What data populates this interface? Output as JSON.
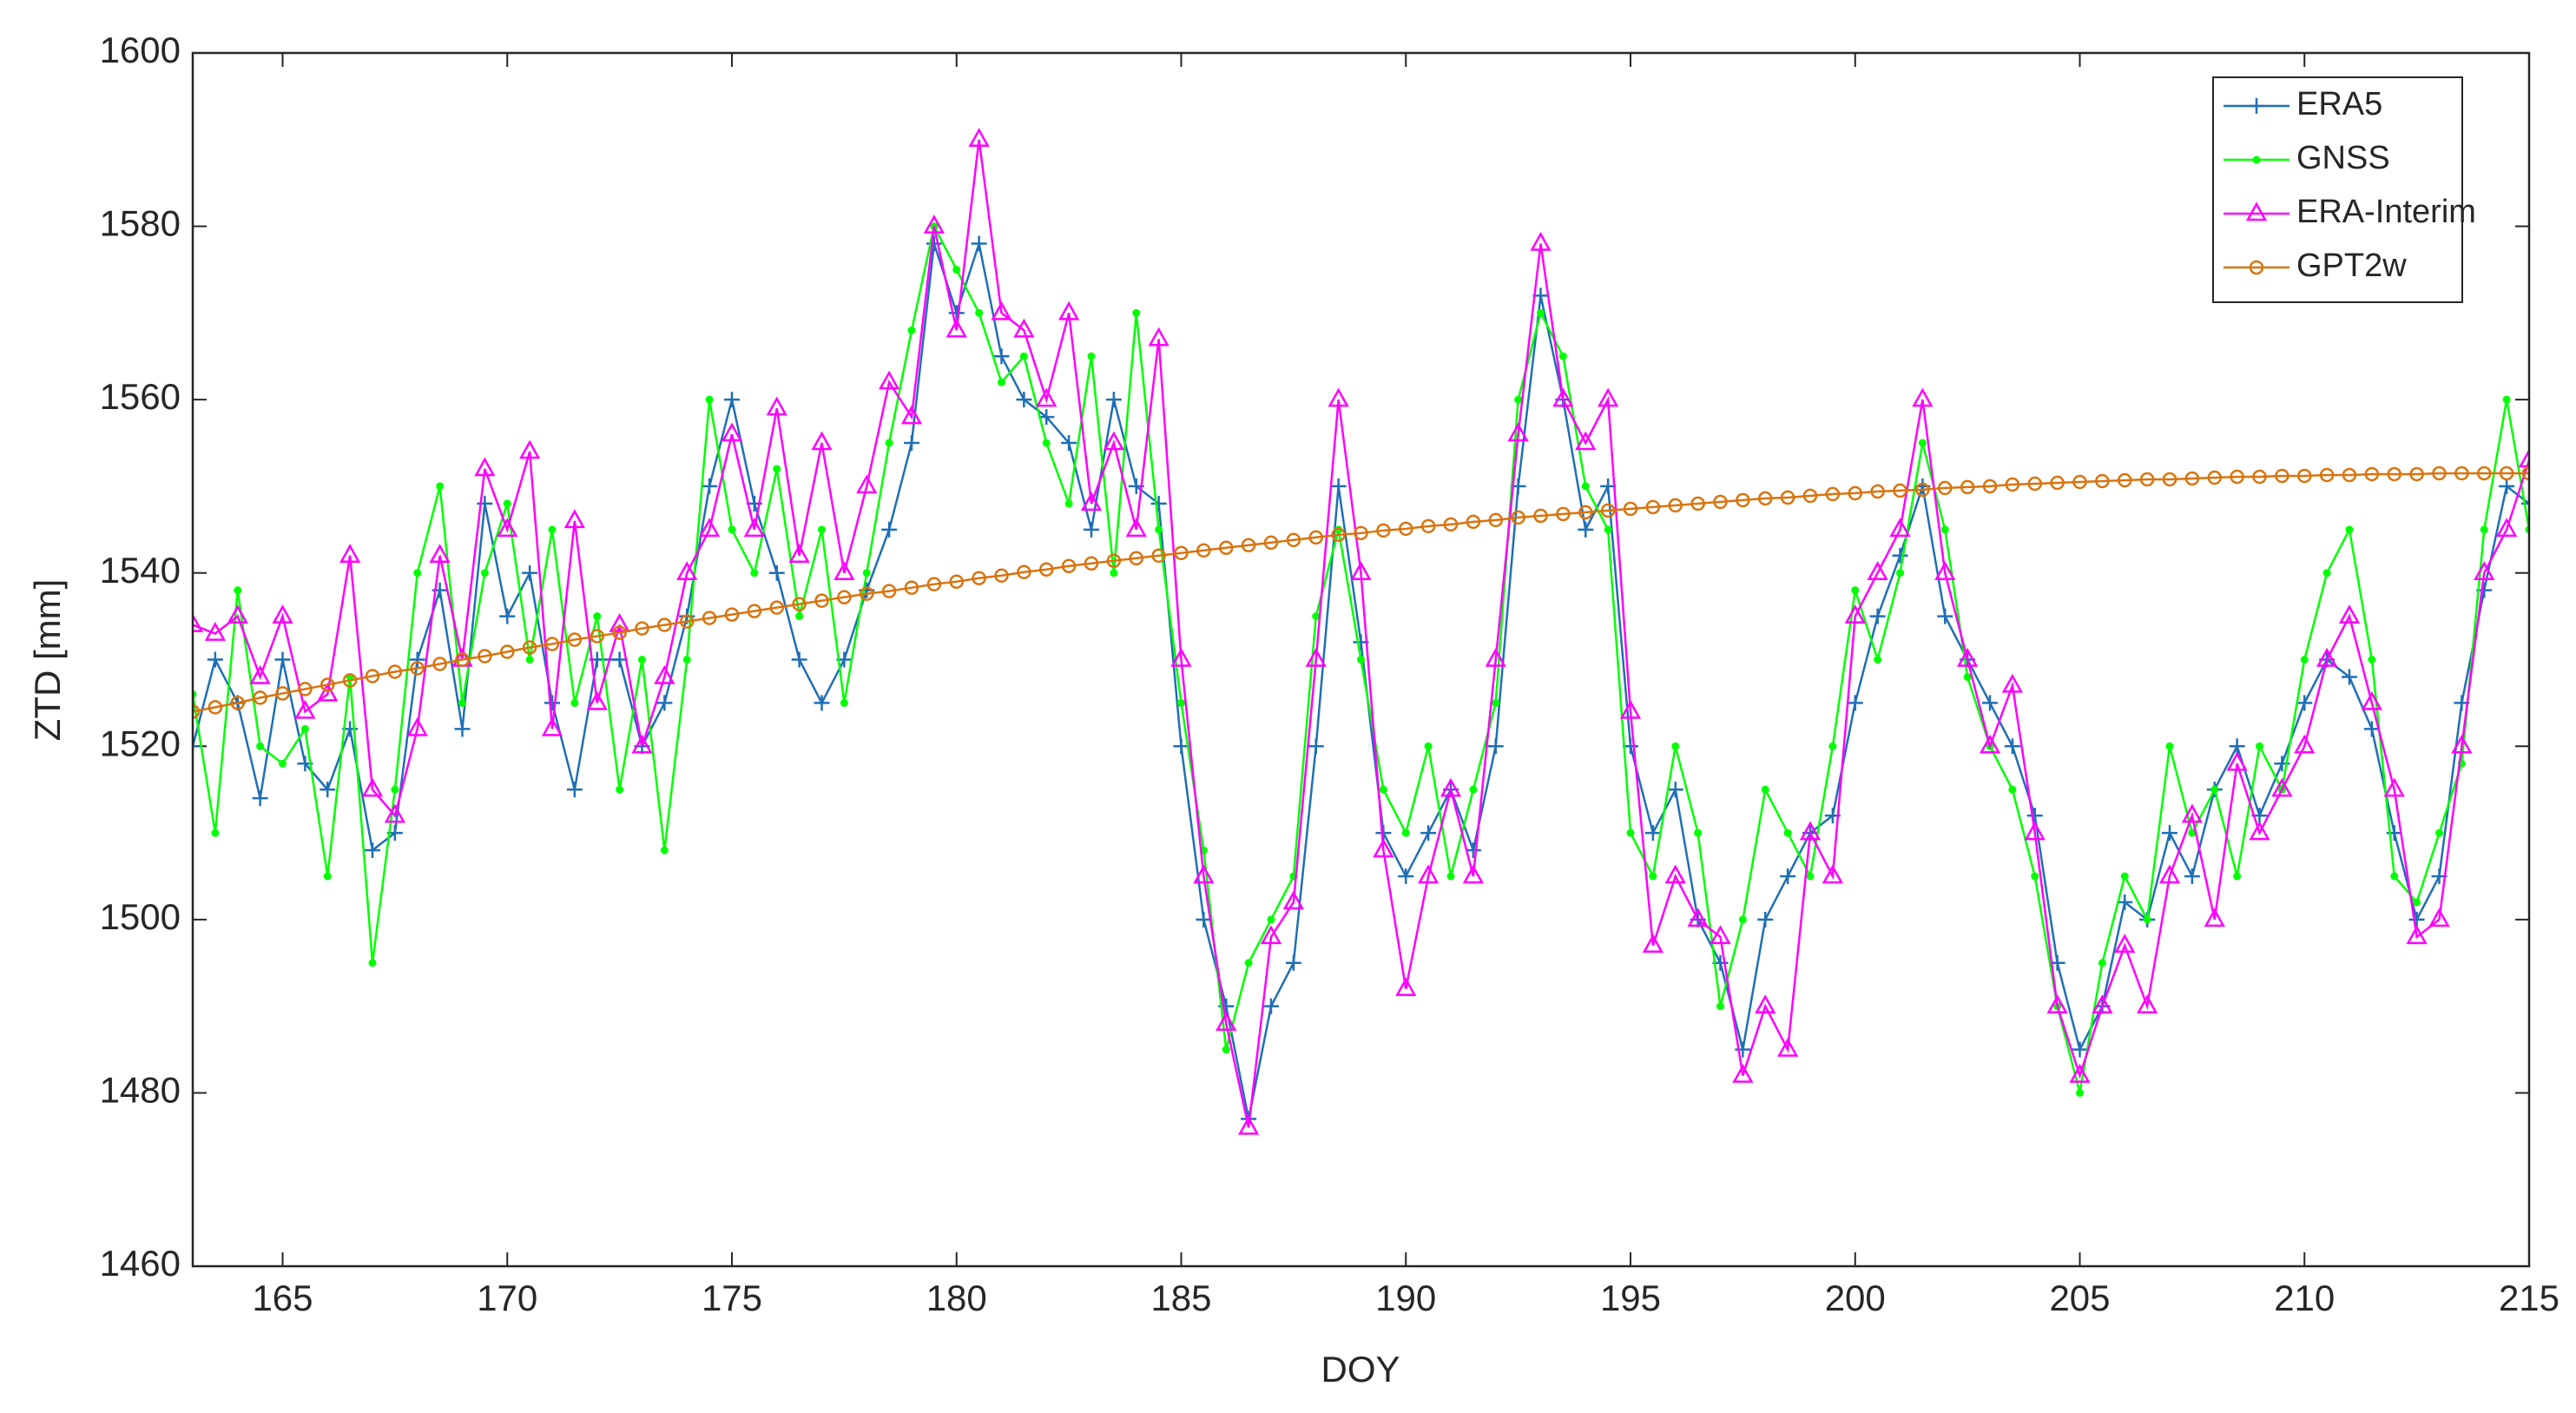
{
  "chart_data": {
    "type": "line",
    "xlabel": "DOY",
    "ylabel": "ZTD [mm]",
    "xlim": [
      163,
      215
    ],
    "xticks": [
      165,
      170,
      175,
      180,
      185,
      190,
      195,
      200,
      205,
      210,
      215
    ],
    "ylim": [
      1460,
      1600
    ],
    "yticks": [
      1460,
      1480,
      1500,
      1520,
      1540,
      1560,
      1580,
      1600
    ],
    "legend": "top-right",
    "x": [
      163,
      163.5,
      164,
      164.5,
      165,
      165.5,
      166,
      166.5,
      167,
      167.5,
      168,
      168.5,
      169,
      169.5,
      170,
      170.5,
      171,
      171.5,
      172,
      172.5,
      173,
      173.5,
      174,
      174.5,
      175,
      175.5,
      176,
      176.5,
      177,
      177.5,
      178,
      178.5,
      179,
      179.5,
      180,
      180.5,
      181,
      181.5,
      182,
      182.5,
      183,
      183.5,
      184,
      184.5,
      185,
      185.5,
      186,
      186.5,
      187,
      187.5,
      188,
      188.5,
      189,
      189.5,
      190,
      190.5,
      191,
      191.5,
      192,
      192.5,
      193,
      193.5,
      194,
      194.5,
      195,
      195.5,
      196,
      196.5,
      197,
      197.5,
      198,
      198.5,
      199,
      199.5,
      200,
      200.5,
      201,
      201.5,
      202,
      202.5,
      203,
      203.5,
      204,
      204.5,
      205,
      205.5,
      206,
      206.5,
      207,
      207.5,
      208,
      208.5,
      209,
      209.5,
      210,
      210.5,
      211,
      211.5,
      212,
      212.5,
      213,
      213.5,
      214,
      214.5,
      215
    ],
    "series": [
      {
        "name": "ERA5",
        "color": "#1f6fb5",
        "marker": "plus",
        "values": [
          1520,
          1530,
          1525,
          1514,
          1530,
          1518,
          1515,
          1522,
          1508,
          1510,
          1530,
          1538,
          1522,
          1548,
          1535,
          1540,
          1525,
          1515,
          1530,
          1530,
          1520,
          1525,
          1535,
          1550,
          1560,
          1548,
          1540,
          1530,
          1525,
          1530,
          1538,
          1545,
          1555,
          1578,
          1570,
          1578,
          1565,
          1560,
          1558,
          1555,
          1545,
          1560,
          1550,
          1548,
          1520,
          1500,
          1490,
          1477,
          1490,
          1495,
          1520,
          1550,
          1532,
          1510,
          1505,
          1510,
          1515,
          1508,
          1520,
          1550,
          1572,
          1560,
          1545,
          1550,
          1520,
          1510,
          1515,
          1500,
          1495,
          1485,
          1500,
          1505,
          1510,
          1512,
          1525,
          1535,
          1542,
          1550,
          1535,
          1530,
          1525,
          1520,
          1512,
          1495,
          1485,
          1490,
          1502,
          1500,
          1510,
          1505,
          1515,
          1520,
          1512,
          1518,
          1525,
          1530,
          1528,
          1522,
          1510,
          1500,
          1505,
          1525,
          1538,
          1550,
          1548
        ]
      },
      {
        "name": "GNSS",
        "color": "#00ff00",
        "marker": "dot",
        "values": [
          1526,
          1510,
          1538,
          1520,
          1518,
          1522,
          1505,
          1528,
          1495,
          1515,
          1540,
          1550,
          1525,
          1540,
          1548,
          1530,
          1545,
          1525,
          1535,
          1515,
          1530,
          1508,
          1530,
          1560,
          1545,
          1540,
          1552,
          1535,
          1545,
          1525,
          1540,
          1555,
          1568,
          1580,
          1575,
          1570,
          1562,
          1565,
          1555,
          1548,
          1565,
          1540,
          1570,
          1545,
          1525,
          1508,
          1485,
          1495,
          1500,
          1505,
          1535,
          1545,
          1530,
          1515,
          1510,
          1520,
          1505,
          1515,
          1525,
          1560,
          1570,
          1565,
          1550,
          1545,
          1510,
          1505,
          1520,
          1510,
          1490,
          1500,
          1515,
          1510,
          1505,
          1520,
          1538,
          1530,
          1540,
          1555,
          1545,
          1528,
          1520,
          1515,
          1505,
          1490,
          1480,
          1495,
          1505,
          1500,
          1520,
          1510,
          1515,
          1505,
          1520,
          1515,
          1530,
          1540,
          1545,
          1530,
          1505,
          1502,
          1510,
          1518,
          1545,
          1560,
          1545
        ]
      },
      {
        "name": "ERA-Interim",
        "color": "#ff00ff",
        "marker": "triangle",
        "values": [
          1534,
          1533,
          1535,
          1528,
          1535,
          1524,
          1526,
          1542,
          1515,
          1512,
          1522,
          1542,
          1530,
          1552,
          1545,
          1554,
          1522,
          1546,
          1525,
          1534,
          1520,
          1528,
          1540,
          1545,
          1556,
          1545,
          1559,
          1542,
          1555,
          1540,
          1550,
          1562,
          1558,
          1580,
          1568,
          1590,
          1570,
          1568,
          1560,
          1570,
          1548,
          1555,
          1545,
          1567,
          1530,
          1505,
          1488,
          1476,
          1498,
          1502,
          1530,
          1560,
          1540,
          1508,
          1492,
          1505,
          1515,
          1505,
          1530,
          1556,
          1578,
          1560,
          1555,
          1560,
          1524,
          1497,
          1505,
          1500,
          1498,
          1482,
          1490,
          1485,
          1510,
          1505,
          1535,
          1540,
          1545,
          1560,
          1540,
          1530,
          1520,
          1527,
          1510,
          1490,
          1482,
          1490,
          1497,
          1490,
          1505,
          1512,
          1500,
          1518,
          1510,
          1515,
          1520,
          1530,
          1535,
          1525,
          1515,
          1498,
          1500,
          1520,
          1540,
          1545,
          1553
        ]
      },
      {
        "name": "GPT2w",
        "color": "#d9730d",
        "marker": "circle",
        "values": [
          1524.0,
          1524.5,
          1525.0,
          1525.6,
          1526.1,
          1526.6,
          1527.1,
          1527.6,
          1528.1,
          1528.6,
          1529.0,
          1529.5,
          1530.0,
          1530.4,
          1530.9,
          1531.4,
          1531.8,
          1532.3,
          1532.7,
          1533.1,
          1533.6,
          1534.0,
          1534.4,
          1534.8,
          1535.2,
          1535.6,
          1536.0,
          1536.4,
          1536.8,
          1537.2,
          1537.6,
          1537.9,
          1538.3,
          1538.7,
          1539.0,
          1539.4,
          1539.7,
          1540.1,
          1540.4,
          1540.8,
          1541.1,
          1541.4,
          1541.7,
          1542.0,
          1542.3,
          1542.6,
          1542.9,
          1543.2,
          1543.5,
          1543.8,
          1544.1,
          1544.4,
          1544.6,
          1544.9,
          1545.1,
          1545.4,
          1545.6,
          1545.9,
          1546.1,
          1546.4,
          1546.6,
          1546.8,
          1547.0,
          1547.2,
          1547.4,
          1547.6,
          1547.8,
          1548.0,
          1548.2,
          1548.4,
          1548.6,
          1548.7,
          1548.9,
          1549.1,
          1549.2,
          1549.4,
          1549.5,
          1549.6,
          1549.8,
          1549.9,
          1550.0,
          1550.2,
          1550.3,
          1550.4,
          1550.5,
          1550.6,
          1550.7,
          1550.8,
          1550.8,
          1550.9,
          1551.0,
          1551.1,
          1551.1,
          1551.2,
          1551.2,
          1551.3,
          1551.3,
          1551.4,
          1551.4,
          1551.4,
          1551.5,
          1551.5,
          1551.5,
          1551.5,
          1551.5
        ]
      }
    ]
  }
}
